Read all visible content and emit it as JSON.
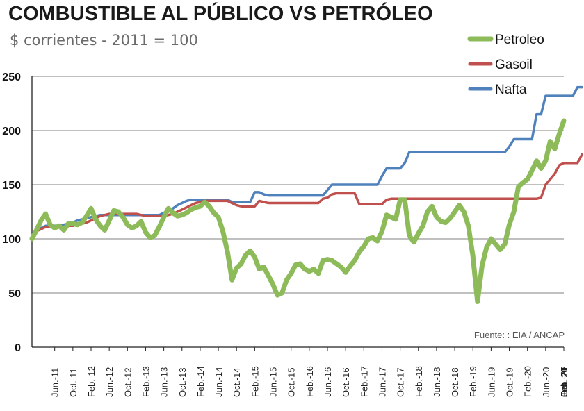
{
  "title": "COMBUSTIBLE AL PÚBLICO VS PETRÓLEO",
  "subtitle": "$ corrientes - 2011 = 100",
  "source": "Fuente: : EIA / ANCAP",
  "chart_data": {
    "type": "line",
    "title": "COMBUSTIBLE AL PÚBLICO VS PETRÓLEO",
    "subtitle": "$ corrientes - 2011 = 100",
    "ylim": [
      0,
      250
    ],
    "yticks": [
      0,
      50,
      100,
      150,
      200,
      250
    ],
    "grid": true,
    "legend_position": "top-right",
    "x_tick_labels": [
      "Jun.-11",
      "Oct.-11",
      "Feb.-12",
      "Jun.-12",
      "Oct.-12",
      "Feb.-13",
      "Jun.-13",
      "Oct.-13",
      "Feb.-14",
      "Jun.-14",
      "Oct.-14",
      "Feb.-15",
      "Jun.-15",
      "Oct.-15",
      "Feb.-16",
      "Jun.-16",
      "Oct.-16",
      "Feb.-17",
      "Jun.-17",
      "Oct.-17",
      "Feb.-18",
      "Jun.-18",
      "Oct.-18",
      "Feb.-19",
      "Jun.-19",
      "Oct.-19",
      "Feb.-20",
      "Jun.-20",
      "Oct.-20",
      "Feb.-21",
      "Jun.-21",
      "Oct.-21",
      "Feb.-22"
    ],
    "x_start": "2011-01",
    "x_end": "2022-02",
    "series": [
      {
        "name": "Petroleo",
        "color": "#8DBB5A",
        "values": [
          100,
          108,
          117,
          123,
          113,
          110,
          112,
          108,
          114,
          114,
          113,
          115,
          121,
          128,
          118,
          112,
          108,
          117,
          126,
          125,
          120,
          113,
          110,
          112,
          116,
          106,
          101,
          103,
          111,
          120,
          128,
          124,
          121,
          122,
          124,
          127,
          129,
          130,
          134,
          130,
          124,
          120,
          107,
          88,
          62,
          73,
          77,
          85,
          89,
          83,
          72,
          74,
          66,
          58,
          48,
          50,
          62,
          68,
          76,
          77,
          72,
          70,
          72,
          68,
          80,
          81,
          80,
          77,
          74,
          69,
          75,
          80,
          88,
          93,
          100,
          101,
          98,
          107,
          122,
          120,
          118,
          136,
          136,
          103,
          97,
          105,
          112,
          125,
          130,
          120,
          116,
          115,
          119,
          125,
          131,
          125,
          112,
          84,
          42,
          75,
          92,
          100,
          95,
          90,
          95,
          113,
          125,
          148,
          152,
          155,
          163,
          172,
          165,
          172,
          190,
          183,
          197,
          209
        ]
      },
      {
        "name": "Gasoil",
        "color": "#C0504D",
        "values": [
          100,
          107,
          109,
          111,
          111,
          111,
          111,
          111,
          112,
          112,
          113,
          114,
          115,
          117,
          119,
          121,
          122,
          123,
          123,
          123,
          123,
          123,
          123,
          123,
          122,
          121,
          121,
          121,
          121,
          121,
          122,
          123,
          125,
          127,
          129,
          131,
          133,
          134,
          135,
          135,
          135,
          135,
          135,
          135,
          133,
          131,
          130,
          130,
          130,
          130,
          135,
          134,
          133,
          133,
          133,
          133,
          133,
          133,
          133,
          133,
          133,
          133,
          133,
          133,
          137,
          138,
          141,
          142,
          142,
          142,
          142,
          142,
          132,
          132,
          132,
          132,
          132,
          132,
          136,
          137,
          137,
          137,
          137,
          137,
          137,
          137,
          137,
          137,
          137,
          137,
          137,
          137,
          137,
          137,
          137,
          137,
          137,
          137,
          137,
          137,
          137,
          137,
          137,
          137,
          137,
          137,
          137,
          137,
          137,
          137,
          137,
          137,
          138,
          150,
          155,
          160,
          168,
          170,
          170,
          170,
          170,
          178
        ]
      },
      {
        "name": "Nafta",
        "color": "#4F81BD",
        "values": [
          100,
          108,
          110,
          112,
          112,
          112,
          112,
          113,
          114,
          115,
          117,
          118,
          119,
          120,
          121,
          122,
          122,
          122,
          122,
          122,
          122,
          122,
          122,
          122,
          122,
          122,
          122,
          122,
          122,
          124,
          126,
          128,
          131,
          133,
          135,
          136,
          136,
          136,
          136,
          136,
          136,
          136,
          136,
          136,
          134,
          134,
          134,
          134,
          134,
          143,
          143,
          141,
          140,
          140,
          140,
          140,
          140,
          140,
          140,
          140,
          140,
          140,
          140,
          140,
          140,
          145,
          150,
          150,
          150,
          150,
          150,
          150,
          150,
          150,
          150,
          150,
          150,
          158,
          165,
          165,
          165,
          165,
          170,
          180,
          180,
          180,
          180,
          180,
          180,
          180,
          180,
          180,
          180,
          180,
          180,
          180,
          180,
          180,
          180,
          180,
          180,
          180,
          180,
          180,
          180,
          185,
          192,
          192,
          192,
          192,
          192,
          215,
          215,
          232,
          232,
          232,
          232,
          232,
          232,
          232,
          240,
          240
        ]
      }
    ]
  }
}
